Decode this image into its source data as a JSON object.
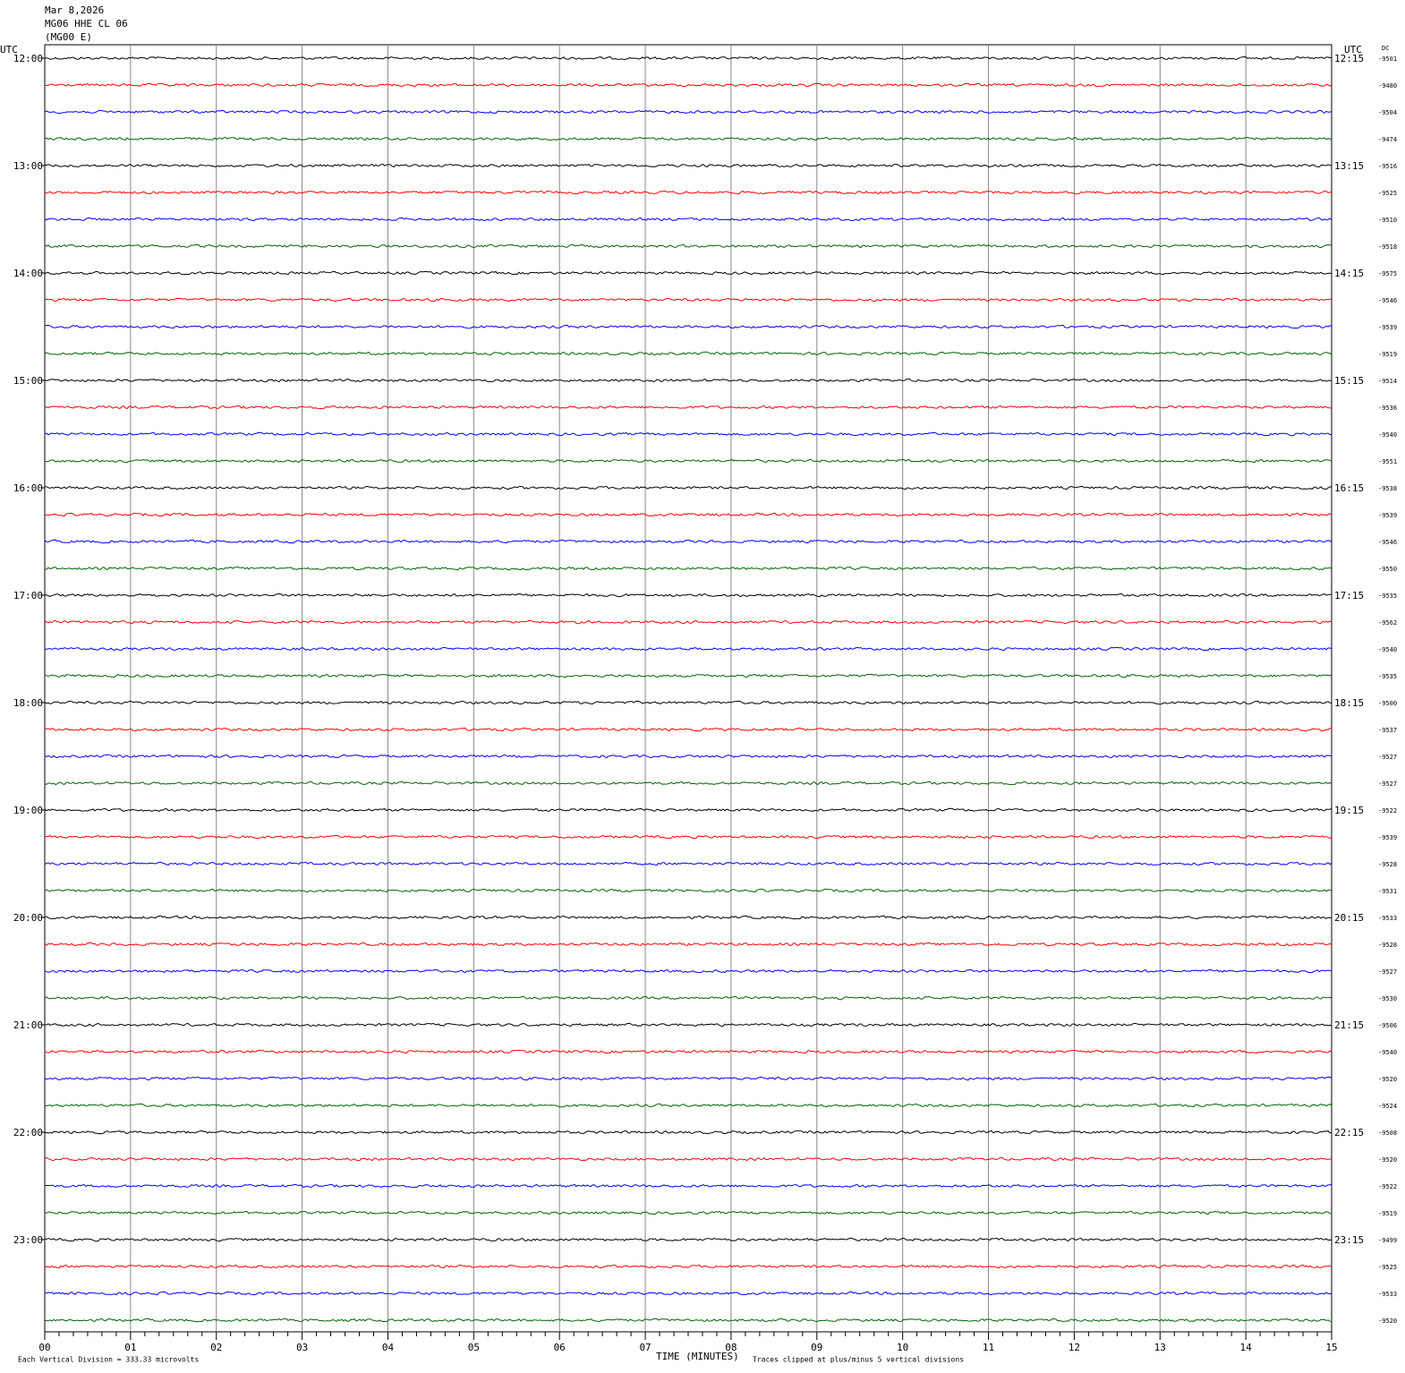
{
  "header": {
    "date": "Mar 8,2026",
    "station": "MG06 HHE CL 06",
    "network": "(MG00 E)"
  },
  "left_axis": {
    "title": "UTC",
    "labels": [
      "12:00",
      "13:00",
      "14:00",
      "15:00",
      "16:00",
      "17:00",
      "18:00",
      "19:00",
      "20:00",
      "21:00",
      "22:00",
      "23:00"
    ]
  },
  "right_axis": {
    "title": "UTC",
    "labels": [
      "12:15",
      "13:15",
      "14:15",
      "15:15",
      "16:15",
      "17:15",
      "18:15",
      "19:15",
      "20:15",
      "21:15",
      "22:15",
      "23:15"
    ]
  },
  "dc_column": {
    "title": "DC",
    "values": [
      "-9501",
      "-9480",
      "-9504",
      "-9474",
      "-9516",
      "-9525",
      "-9510",
      "-9518",
      "-9575",
      "-9546",
      "-9539",
      "-9519",
      "-9514",
      "-9536",
      "-9540",
      "-9551",
      "-9538",
      "-9539",
      "-9546",
      "-9550",
      "-9535",
      "-9562",
      "-9540",
      "-9535",
      "-9500",
      "-9537",
      "-9527",
      "-9527",
      "-9522",
      "-9539",
      "-9528",
      "-9531",
      "-9533",
      "-9528",
      "-9527",
      "-9530",
      "-9506",
      "-9540",
      "-9520",
      "-9524",
      "-9508",
      "-9520",
      "-9522",
      "-9519",
      "-9499",
      "-9525",
      "-9533",
      "-9520"
    ]
  },
  "time_axis": {
    "title": "TIME (MINUTES)",
    "ticks": [
      "00",
      "01",
      "02",
      "03",
      "04",
      "05",
      "06",
      "07",
      "08",
      "09",
      "10",
      "11",
      "12",
      "13",
      "14",
      "15"
    ]
  },
  "footer": {
    "scale": "Each Vertical Division =  333.33 microvolts",
    "clip": "Traces clipped at plus/minus 5 vertical divisions"
  }
}
